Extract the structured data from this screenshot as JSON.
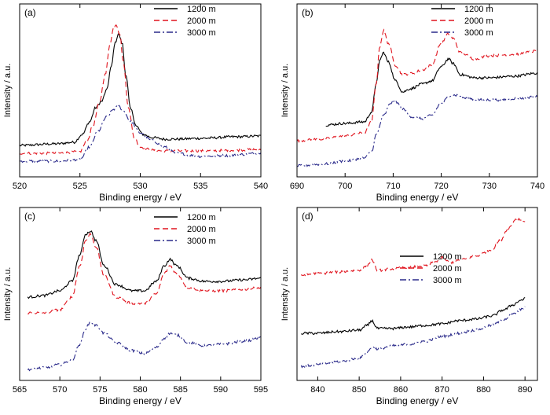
{
  "chart_data": [
    {
      "type": "line",
      "panel_label": "(a)",
      "xlabel": "Binding energy / eV",
      "ylabel": "Intensity / a.u.",
      "xlim": [
        520,
        540
      ],
      "xticks": [
        520,
        525,
        530,
        535,
        540
      ],
      "ylim": [
        0,
        100
      ],
      "yticks_labeled": false,
      "legend_position": "top-right",
      "series": [
        {
          "name": "1200 m",
          "color": "#000000",
          "dash": "solid",
          "x": [
            520,
            523,
            524.5,
            525.2,
            525.8,
            526.3,
            526.8,
            527.2,
            527.6,
            527.9,
            528.2,
            528.5,
            528.8,
            529.2,
            529.7,
            530.2,
            531,
            532,
            533,
            535,
            538,
            540
          ],
          "y": [
            15,
            16,
            17,
            22,
            30,
            39,
            43,
            50,
            65,
            80,
            86,
            80,
            60,
            38,
            27,
            22,
            20,
            19,
            19,
            19.5,
            20.5,
            21
          ]
        },
        {
          "name": "2000 m",
          "color": "#e0141e",
          "dash": "dashed",
          "x": [
            520,
            523,
            525,
            525.6,
            526.1,
            526.6,
            527.1,
            527.5,
            527.8,
            528.0,
            528.3,
            528.6,
            529.0,
            529.5,
            530,
            531,
            532,
            535,
            538,
            540
          ],
          "y": [
            10,
            10,
            11,
            18,
            28,
            42,
            60,
            80,
            90,
            92,
            86,
            68,
            40,
            20,
            14,
            12,
            11.5,
            11.5,
            12,
            12.5
          ]
        },
        {
          "name": "3000 m",
          "color": "#2a2a8a",
          "dash": "dashdot",
          "x": [
            520,
            523,
            525,
            525.8,
            526.5,
            527.2,
            527.8,
            528.2,
            528.6,
            529.2,
            530,
            531,
            532,
            533,
            535,
            537,
            540
          ],
          "y": [
            5,
            5,
            6,
            14,
            24,
            33,
            38,
            40,
            37,
            30,
            23,
            18,
            14,
            10,
            8,
            8.5,
            10
          ]
        }
      ]
    },
    {
      "type": "line",
      "panel_label": "(b)",
      "xlabel": "Binding energy / eV",
      "ylabel": "Intensity / a.u.",
      "xlim": [
        690,
        740
      ],
      "xticks": [
        690,
        700,
        710,
        720,
        730,
        740
      ],
      "ylim": [
        0,
        100
      ],
      "yticks_labeled": false,
      "legend_position": "top-right",
      "series": [
        {
          "name": "1200 m",
          "color": "#000000",
          "dash": "solid",
          "x": [
            696,
            700,
            704,
            705.5,
            706.5,
            707.3,
            708,
            709,
            710.5,
            712,
            713.5,
            716,
            718,
            720,
            721.5,
            722.5,
            724,
            727,
            730,
            735,
            740
          ],
          "y": [
            28,
            29,
            30,
            36,
            55,
            70,
            74,
            68,
            56,
            49,
            51,
            54,
            56,
            65,
            70,
            67,
            60,
            58,
            58,
            59,
            61
          ]
        },
        {
          "name": "2000 m",
          "color": "#e0141e",
          "dash": "dashed",
          "x": [
            690,
            695,
            700,
            704,
            705.5,
            706.5,
            707.2,
            708,
            709,
            710.5,
            712,
            714,
            716,
            718,
            720,
            721.5,
            722.5,
            724,
            727,
            730,
            735,
            740
          ],
          "y": [
            18,
            19,
            21,
            23,
            30,
            55,
            78,
            88,
            80,
            66,
            60,
            61,
            63,
            66,
            80,
            86,
            83,
            74,
            70,
            72,
            73,
            75
          ]
        },
        {
          "name": "3000 m",
          "color": "#2a2a8a",
          "dash": "dashdot",
          "x": [
            690,
            695,
            700,
            704,
            705.5,
            706.5,
            708,
            709.5,
            710.5,
            712,
            714,
            716,
            718,
            720,
            722,
            723.5,
            725,
            728,
            732,
            736,
            740
          ],
          "y": [
            2,
            3,
            5,
            7,
            11,
            22,
            34,
            42,
            43,
            38,
            33,
            32,
            34,
            42,
            47,
            47,
            45,
            44,
            44,
            45,
            46
          ]
        }
      ]
    },
    {
      "type": "line",
      "panel_label": "(c)",
      "xlabel": "Binding energy / eV",
      "ylabel": "Intensity / a.u.",
      "xlim": [
        565,
        595
      ],
      "xticks": [
        565,
        570,
        575,
        580,
        585,
        590,
        595
      ],
      "ylim": [
        0,
        100
      ],
      "yticks_labeled": false,
      "legend_position": "top-right",
      "series": [
        {
          "name": "1200 m",
          "color": "#000000",
          "dash": "solid",
          "x": [
            566,
            568,
            570,
            571.5,
            572.5,
            573.2,
            573.8,
            574.5,
            575.5,
            577,
            579,
            580.5,
            582,
            583,
            583.7,
            584.5,
            586,
            588,
            590,
            593,
            595
          ],
          "y": [
            48,
            49,
            52,
            58,
            75,
            88,
            90,
            84,
            68,
            56,
            52,
            52,
            58,
            68,
            72,
            68,
            60,
            58,
            58,
            59,
            60
          ]
        },
        {
          "name": "2000 m",
          "color": "#e0141e",
          "dash": "dashed",
          "x": [
            566,
            568,
            570,
            571.5,
            572.5,
            573.2,
            573.8,
            574.5,
            575.5,
            577,
            579,
            580.5,
            582,
            583,
            583.7,
            584.5,
            586,
            588,
            590,
            593,
            595
          ],
          "y": [
            38,
            38,
            40,
            48,
            68,
            84,
            88,
            80,
            62,
            48,
            44,
            44,
            50,
            63,
            68,
            63,
            54,
            52,
            52,
            53,
            54
          ]
        },
        {
          "name": "3000 m",
          "color": "#2a2a8a",
          "dash": "dashdot",
          "x": [
            566,
            568,
            570,
            571.5,
            572.5,
            573.2,
            573.8,
            574.5,
            575.5,
            577,
            579,
            580.5,
            582,
            583,
            583.7,
            584.5,
            586,
            588,
            590,
            593,
            595
          ],
          "y": [
            2,
            3,
            5,
            8,
            18,
            28,
            32,
            30,
            25,
            19,
            14,
            12,
            16,
            22,
            25,
            24,
            19,
            17,
            18,
            20,
            22
          ]
        }
      ]
    },
    {
      "type": "line",
      "panel_label": "(d)",
      "xlabel": "Binding energy / eV",
      "ylabel": "Intensity / a.u.",
      "xlim": [
        835,
        893
      ],
      "xticks": [
        840,
        850,
        860,
        870,
        880,
        890
      ],
      "ylim": [
        0,
        100
      ],
      "yticks_labeled": false,
      "legend_position": "center-right",
      "series": [
        {
          "name": "1200 m",
          "color": "#000000",
          "dash": "solid",
          "x": [
            836,
            840,
            845,
            850,
            852,
            853,
            854.5,
            858,
            862,
            866,
            870,
            874,
            878,
            882,
            885,
            887,
            889,
            890
          ],
          "y": [
            25,
            25,
            26,
            27,
            30,
            33,
            28,
            28,
            29,
            30,
            31,
            33,
            34,
            36,
            40,
            43,
            46,
            47
          ]
        },
        {
          "name": "2000 m",
          "color": "#e0141e",
          "dash": "dashed",
          "x": [
            836,
            840,
            845,
            850,
            852,
            853,
            854.5,
            858,
            862,
            866,
            868,
            870,
            872,
            875,
            878,
            882,
            884,
            886,
            888,
            890
          ],
          "y": [
            62,
            63,
            64,
            65,
            68,
            72,
            65,
            66,
            67,
            68,
            70,
            73,
            70,
            72,
            74,
            78,
            84,
            92,
            98,
            96
          ]
        },
        {
          "name": "3000 m",
          "color": "#2a2a8a",
          "dash": "dashdot",
          "x": [
            836,
            840,
            845,
            850,
            852,
            853,
            854.5,
            858,
            862,
            866,
            870,
            874,
            878,
            882,
            885,
            887,
            889,
            890
          ],
          "y": [
            4,
            5,
            7,
            9,
            13,
            16,
            15,
            17,
            18,
            20,
            23,
            25,
            27,
            30,
            34,
            37,
            40,
            42
          ]
        }
      ]
    }
  ]
}
